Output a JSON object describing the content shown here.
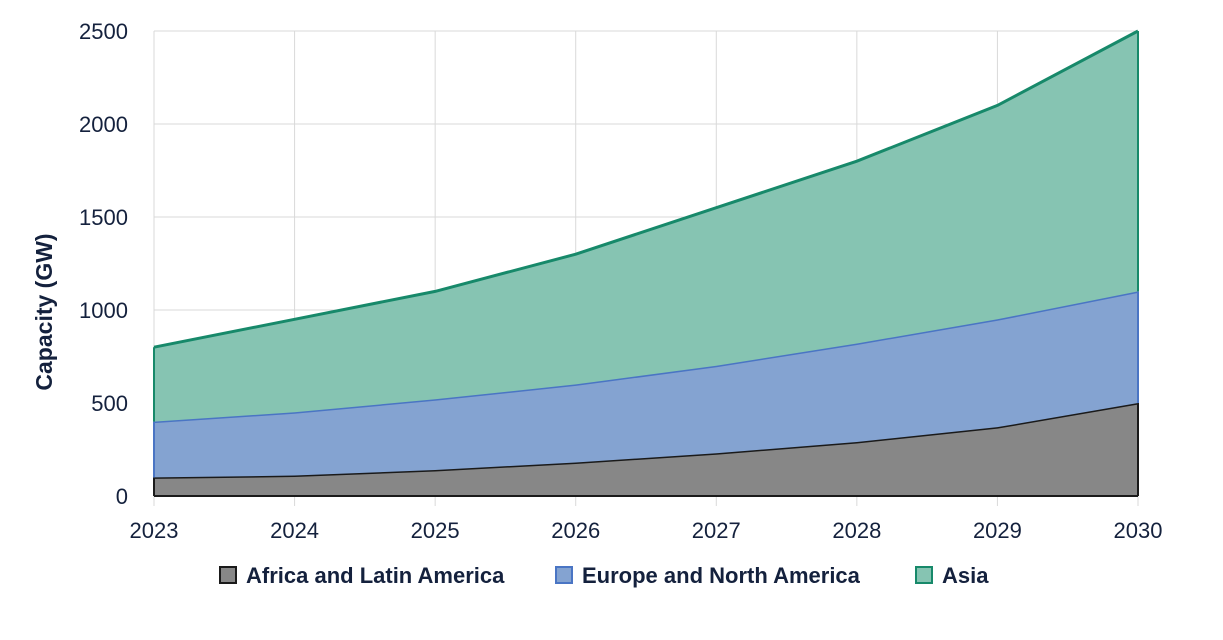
{
  "chart_data": {
    "type": "area",
    "stacked": true,
    "title": "",
    "xlabel": "",
    "ylabel": "Capacity (GW)",
    "x": [
      2023,
      2024,
      2025,
      2026,
      2027,
      2028,
      2029,
      2030
    ],
    "ylim": [
      0,
      2500
    ],
    "yticks": [
      0,
      500,
      1000,
      1500,
      2000,
      2500
    ],
    "grid": true,
    "legend_position": "bottom",
    "series": [
      {
        "name": "Africa and Latin America",
        "values": [
          100,
          110,
          140,
          180,
          230,
          290,
          370,
          500
        ],
        "fill": "#878787",
        "stroke": "#1a1a1a"
      },
      {
        "name": "Europe and North America",
        "values": [
          300,
          340,
          380,
          420,
          470,
          530,
          580,
          600
        ],
        "fill": "#84a3d1",
        "stroke": "#4a75c4"
      },
      {
        "name": "Asia",
        "values": [
          400,
          500,
          580,
          700,
          850,
          980,
          1150,
          1400
        ],
        "fill": "#86c4b2",
        "stroke": "#17896a"
      }
    ]
  }
}
